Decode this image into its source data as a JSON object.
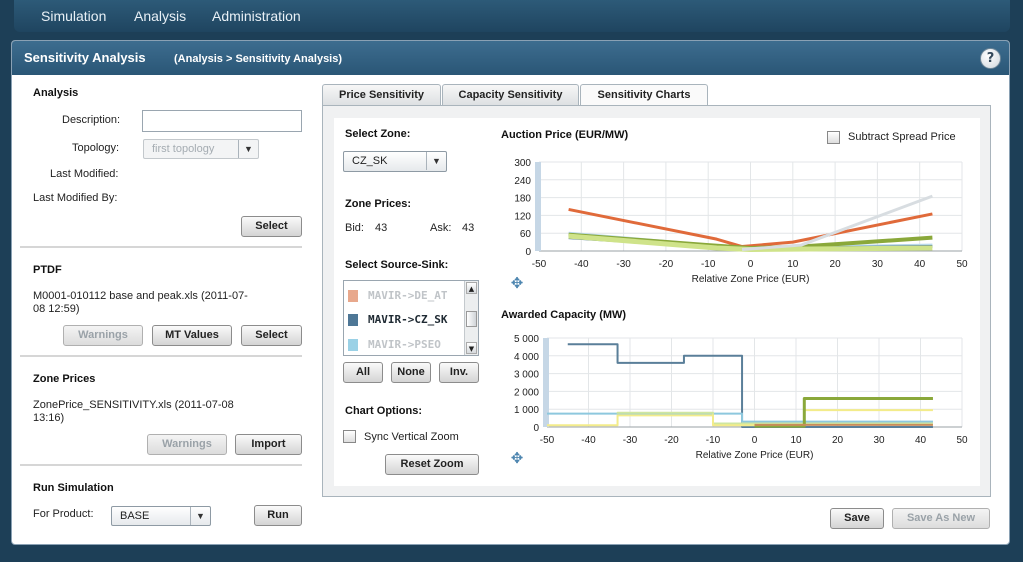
{
  "nav": {
    "items": [
      "Simulation",
      "Analysis",
      "Administration"
    ]
  },
  "header": {
    "title": "Sensitivity Analysis",
    "breadcrumb": "(Analysis > Sensitivity Analysis)",
    "help_label": "?"
  },
  "analysis": {
    "title": "Analysis",
    "description_label": "Description:",
    "description_value": "",
    "topology_label": "Topology:",
    "topology_value": "first topology",
    "last_modified_label": "Last Modified:",
    "last_modified_by_label": "Last Modified By:",
    "select_button": "Select"
  },
  "ptdf": {
    "title": "PTDF",
    "file_text": "M0001-010112 base and peak.xls  (2011-07-08 12:59)",
    "file_line1": "M0001-010112 base and peak.xls  (2011-07-",
    "file_line2": "08 12:59)",
    "warnings_button": "Warnings",
    "mt_values_button": "MT Values",
    "select_button": "Select"
  },
  "zone_prices": {
    "title": "Zone Prices",
    "file_line1": "ZonePrice_SENSITIVITY.xls  (2011-07-08",
    "file_line2": "13:16)",
    "warnings_button": "Warnings",
    "import_button": "Import"
  },
  "run_simulation": {
    "title": "Run Simulation",
    "product_label": "For Product:",
    "product_value": "BASE",
    "run_button": "Run"
  },
  "tabs": [
    {
      "label": "Price Sensitivity",
      "active": false
    },
    {
      "label": "Capacity Sensitivity",
      "active": false
    },
    {
      "label": "Sensitivity Charts",
      "active": true
    }
  ],
  "charts_panel": {
    "select_zone_label": "Select Zone:",
    "zone_value": "CZ_SK",
    "zone_prices_label": "Zone Prices:",
    "bid_label": "Bid:",
    "bid_value": "43",
    "ask_label": "Ask:",
    "ask_value": "43",
    "source_sink_label": "Select Source-Sink:",
    "source_sink_items": [
      {
        "label": "MAVIR->DE_AT",
        "color": "#e8a88c",
        "selected": false
      },
      {
        "label": "MAVIR->CZ_SK",
        "color": "#4e7796",
        "selected": true
      },
      {
        "label": "MAVIR->PSEO",
        "color": "#9ad1e6",
        "selected": false
      }
    ],
    "all_button": "All",
    "none_button": "None",
    "inv_button": "Inv.",
    "chart_options_label": "Chart Options:",
    "sync_zoom_label": "Sync Vertical Zoom",
    "reset_zoom_button": "Reset Zoom",
    "subtract_spread_label": "Subtract Spread Price"
  },
  "footer": {
    "save_button": "Save",
    "save_as_new_button": "Save As New"
  },
  "chart_data": [
    {
      "type": "line",
      "title": "Auction Price  (EUR/MW)",
      "xlabel": "Relative Zone Price (EUR)",
      "ylabel": "",
      "xlim": [
        -50,
        50
      ],
      "ylim": [
        0,
        300
      ],
      "xticks": [
        -50,
        -40,
        -30,
        -20,
        -10,
        0,
        10,
        20,
        30,
        40,
        50
      ],
      "yticks": [
        0,
        60,
        120,
        180,
        240,
        300
      ],
      "grid": true,
      "series": [
        {
          "color": "#e06a3a",
          "width": 3,
          "points": [
            [
              -43,
              140
            ],
            [
              -8,
              40
            ],
            [
              -2,
              15
            ],
            [
              10,
              30
            ],
            [
              43,
              125
            ]
          ]
        },
        {
          "color": "#b8d9ea",
          "width": 3,
          "points": [
            [
              -43,
              60
            ],
            [
              -10,
              20
            ],
            [
              0,
              10
            ],
            [
              43,
              20
            ]
          ]
        },
        {
          "color": "#4e7796",
          "width": 3,
          "points": [
            [
              -43,
              45
            ],
            [
              -10,
              15
            ],
            [
              0,
              8
            ],
            [
              43,
              15
            ]
          ]
        },
        {
          "color": "#8aa83a",
          "width": 4,
          "points": [
            [
              -43,
              55
            ],
            [
              -10,
              20
            ],
            [
              0,
              10
            ],
            [
              12,
              15
            ],
            [
              43,
              45
            ]
          ]
        },
        {
          "color": "#cfe38a",
          "width": 5,
          "points": [
            [
              -43,
              50
            ],
            [
              -8,
              10
            ],
            [
              0,
              5
            ],
            [
              43,
              10
            ]
          ]
        },
        {
          "color": "#d8dde1",
          "width": 3,
          "points": [
            [
              -2,
              5
            ],
            [
              12,
              20
            ],
            [
              43,
              185
            ]
          ]
        }
      ]
    },
    {
      "type": "line",
      "title": "Awarded Capacity  (MW)",
      "xlabel": "Relative Zone Price (EUR)",
      "ylabel": "",
      "xlim": [
        -50,
        50
      ],
      "ylim": [
        0,
        5000
      ],
      "xticks": [
        -50,
        -40,
        -30,
        -20,
        -10,
        0,
        10,
        20,
        30,
        40,
        50
      ],
      "yticks": [
        "0",
        "1 000",
        "2 000",
        "3 000",
        "4 000",
        "5 000"
      ],
      "ytick_values": [
        0,
        1000,
        2000,
        3000,
        4000,
        5000
      ],
      "grid": true,
      "series": [
        {
          "color": "#5a7f99",
          "width": 2,
          "points": [
            [
              -45,
              4650
            ],
            [
              -33,
              4650
            ],
            [
              -33,
              3600
            ],
            [
              -17,
              3600
            ],
            [
              -17,
              4000
            ],
            [
              -3,
              4000
            ],
            [
              -3,
              0
            ],
            [
              43,
              0
            ]
          ]
        },
        {
          "color": "#8dc8de",
          "width": 2,
          "points": [
            [
              -50,
              750
            ],
            [
              -3,
              750
            ],
            [
              -3,
              300
            ],
            [
              43,
              300
            ]
          ]
        },
        {
          "color": "#cfe6a0",
          "width": 2,
          "points": [
            [
              -33,
              750
            ],
            [
              -33,
              800
            ],
            [
              -10,
              800
            ],
            [
              -10,
              200
            ],
            [
              43,
              200
            ]
          ]
        },
        {
          "color": "#f3ec8a",
          "width": 2,
          "points": [
            [
              -50,
              100
            ],
            [
              -33,
              100
            ],
            [
              -33,
              650
            ],
            [
              -10,
              650
            ],
            [
              -10,
              100
            ],
            [
              12,
              100
            ],
            [
              12,
              950
            ],
            [
              43,
              950
            ]
          ]
        },
        {
          "color": "#8aa83a",
          "width": 3,
          "points": [
            [
              0,
              50
            ],
            [
              12,
              50
            ],
            [
              12,
              1600
            ],
            [
              43,
              1600
            ]
          ]
        },
        {
          "color": "#c98c5a",
          "width": 2,
          "points": [
            [
              0,
              120
            ],
            [
              43,
              120
            ]
          ]
        }
      ]
    }
  ]
}
